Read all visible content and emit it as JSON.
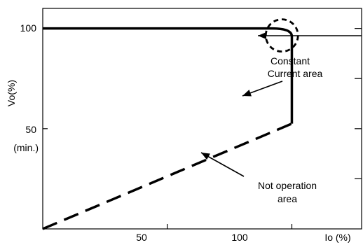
{
  "chart_data": {
    "type": "line",
    "title": "",
    "xlabel": "Io (%)",
    "ylabel": "Vo(%)",
    "xlim": [
      0,
      128
    ],
    "ylim": [
      0,
      110
    ],
    "x_ticks": [
      {
        "value": 50,
        "label": "50"
      },
      {
        "value": 100,
        "label": "100"
      }
    ],
    "y_ticks": [
      {
        "value": 100,
        "label": "100",
        "sublabel": ""
      },
      {
        "value": 50,
        "label": "50",
        "sublabel": "(min.)"
      }
    ],
    "series": [
      {
        "style": "solid",
        "points": [
          [
            0,
            100
          ],
          [
            92,
            100
          ],
          [
            100,
            96
          ],
          [
            100,
            52.5
          ]
        ]
      },
      {
        "style": "dashed",
        "points": [
          [
            0,
            0
          ],
          [
            100,
            52.5
          ]
        ]
      }
    ],
    "highlight": {
      "x": 96,
      "y": 96.5,
      "style": "dashed-circle"
    },
    "annotations": [
      {
        "lines": [
          "Constant",
          "Current area"
        ]
      },
      {
        "lines": [
          "Not operation",
          "area"
        ]
      }
    ],
    "grid": false
  }
}
